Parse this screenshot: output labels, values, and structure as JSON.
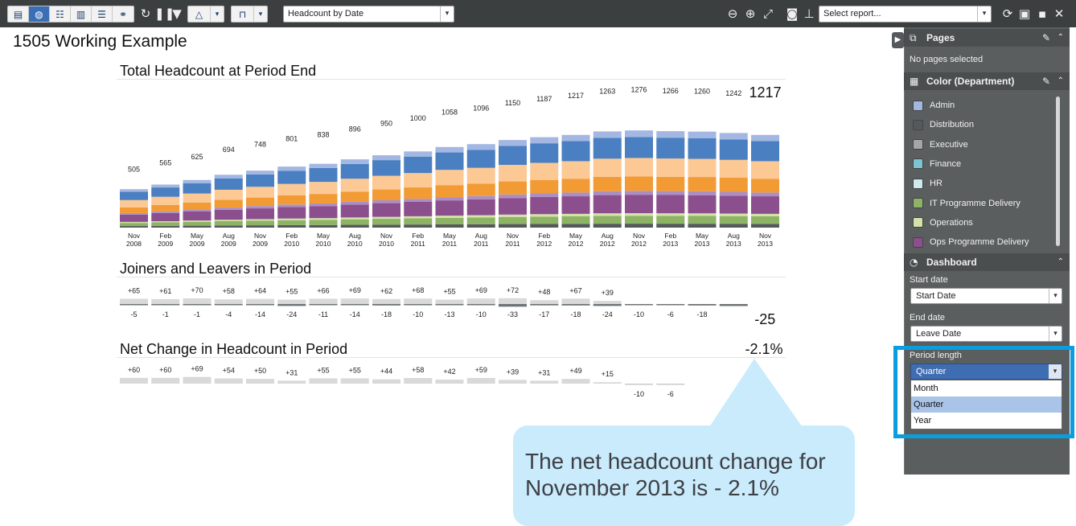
{
  "toolbar": {
    "report_dropdown": "Headcount by Date",
    "report_select_placeholder": "Select report..."
  },
  "page_title": "1505 Working Example",
  "sections": {
    "total_title": "Total Headcount at Period End",
    "joiners_title": "Joiners and Leavers in Period",
    "net_title": "Net Change in Headcount in Period"
  },
  "callout": {
    "value": "-2.1%",
    "text": "The net headcount change for November 2013 is - 2.1%"
  },
  "panel": {
    "pages_header": "Pages",
    "pages_note": "No pages selected",
    "color_header": "Color (Department)",
    "dashboard_header": "Dashboard",
    "start_label": "Start date",
    "start_value": "Start Date",
    "end_label": "End date",
    "end_value": "Leave Date",
    "period_label": "Period length",
    "period_value": "Quarter",
    "period_options": [
      "Month",
      "Quarter",
      "Year"
    ],
    "legend": [
      {
        "name": "Admin",
        "color": "#a3b7e2"
      },
      {
        "name": "Distribution",
        "color": "#55595b"
      },
      {
        "name": "Executive",
        "color": "#a6a6a6"
      },
      {
        "name": "Finance",
        "color": "#7cc4cf"
      },
      {
        "name": "HR",
        "color": "#cfe9ef"
      },
      {
        "name": "IT Programme Delivery",
        "color": "#8db364"
      },
      {
        "name": "Operations",
        "color": "#d3e2a8"
      },
      {
        "name": "Ops Programme Delivery",
        "color": "#8c4f8e"
      }
    ]
  },
  "chart_data": [
    {
      "type": "bar",
      "title": "Total Headcount at Period End",
      "stacked": true,
      "categories": [
        "Nov 2008",
        "Feb 2009",
        "May 2009",
        "Aug 2009",
        "Nov 2009",
        "Feb 2010",
        "May 2010",
        "Aug 2010",
        "Nov 2010",
        "Feb 2011",
        "May 2011",
        "Aug 2011",
        "Nov 2011",
        "Feb 2012",
        "May 2012",
        "Aug 2012",
        "Nov 2012",
        "Feb 2013",
        "May 2013",
        "Aug 2013",
        "Nov 2013"
      ],
      "values": [
        505,
        565,
        625,
        694,
        748,
        801,
        838,
        896,
        950,
        1000,
        1058,
        1096,
        1150,
        1187,
        1217,
        1263,
        1276,
        1266,
        1260,
        1242,
        1217
      ],
      "segment_colors": [
        "#55595b",
        "#8db364",
        "#d3e2a8",
        "#8c4f8e",
        "#ab8fc4",
        "#f29a33",
        "#fcc894",
        "#4a7fc1",
        "#a3b7e2"
      ],
      "segment_shares": [
        0.03,
        0.06,
        0.02,
        0.14,
        0.03,
        0.11,
        0.14,
        0.16,
        0.05
      ],
      "highlight_last": true
    },
    {
      "type": "bar",
      "title": "Joiners and Leavers in Period",
      "categories": [
        "Nov 2008",
        "Feb 2009",
        "May 2009",
        "Aug 2009",
        "Nov 2009",
        "Feb 2010",
        "May 2010",
        "Aug 2010",
        "Nov 2010",
        "Feb 2011",
        "May 2011",
        "Aug 2011",
        "Nov 2011",
        "Feb 2012",
        "May 2012",
        "Aug 2012",
        "Nov 2012",
        "Feb 2013",
        "May 2013",
        "Aug 2013",
        "Nov 2013"
      ],
      "series": [
        {
          "name": "Joiners",
          "values": [
            65,
            61,
            70,
            58,
            64,
            55,
            66,
            69,
            62,
            68,
            55,
            69,
            72,
            48,
            67,
            39,
            null,
            null,
            null,
            null,
            null
          ]
        },
        {
          "name": "Leavers",
          "values": [
            -5,
            -1,
            -1,
            -4,
            -14,
            -24,
            -11,
            -14,
            -18,
            -10,
            -13,
            -10,
            -33,
            -17,
            -18,
            -24,
            -10,
            -6,
            -18,
            -25,
            null
          ]
        }
      ]
    },
    {
      "type": "bar",
      "title": "Net Change in Headcount in Period",
      "categories": [
        "Nov 2008",
        "Feb 2009",
        "May 2009",
        "Aug 2009",
        "Nov 2009",
        "Feb 2010",
        "May 2010",
        "Aug 2010",
        "Nov 2010",
        "Feb 2011",
        "May 2011",
        "Aug 2011",
        "Nov 2011",
        "Feb 2012",
        "May 2012",
        "Aug 2012",
        "Nov 2012",
        "Feb 2013",
        "May 2013",
        "Aug 2013",
        "Nov 2013"
      ],
      "values": [
        60,
        60,
        69,
        54,
        50,
        31,
        55,
        55,
        44,
        58,
        42,
        59,
        39,
        31,
        49,
        15,
        -10,
        -6,
        null,
        null,
        null
      ]
    }
  ]
}
